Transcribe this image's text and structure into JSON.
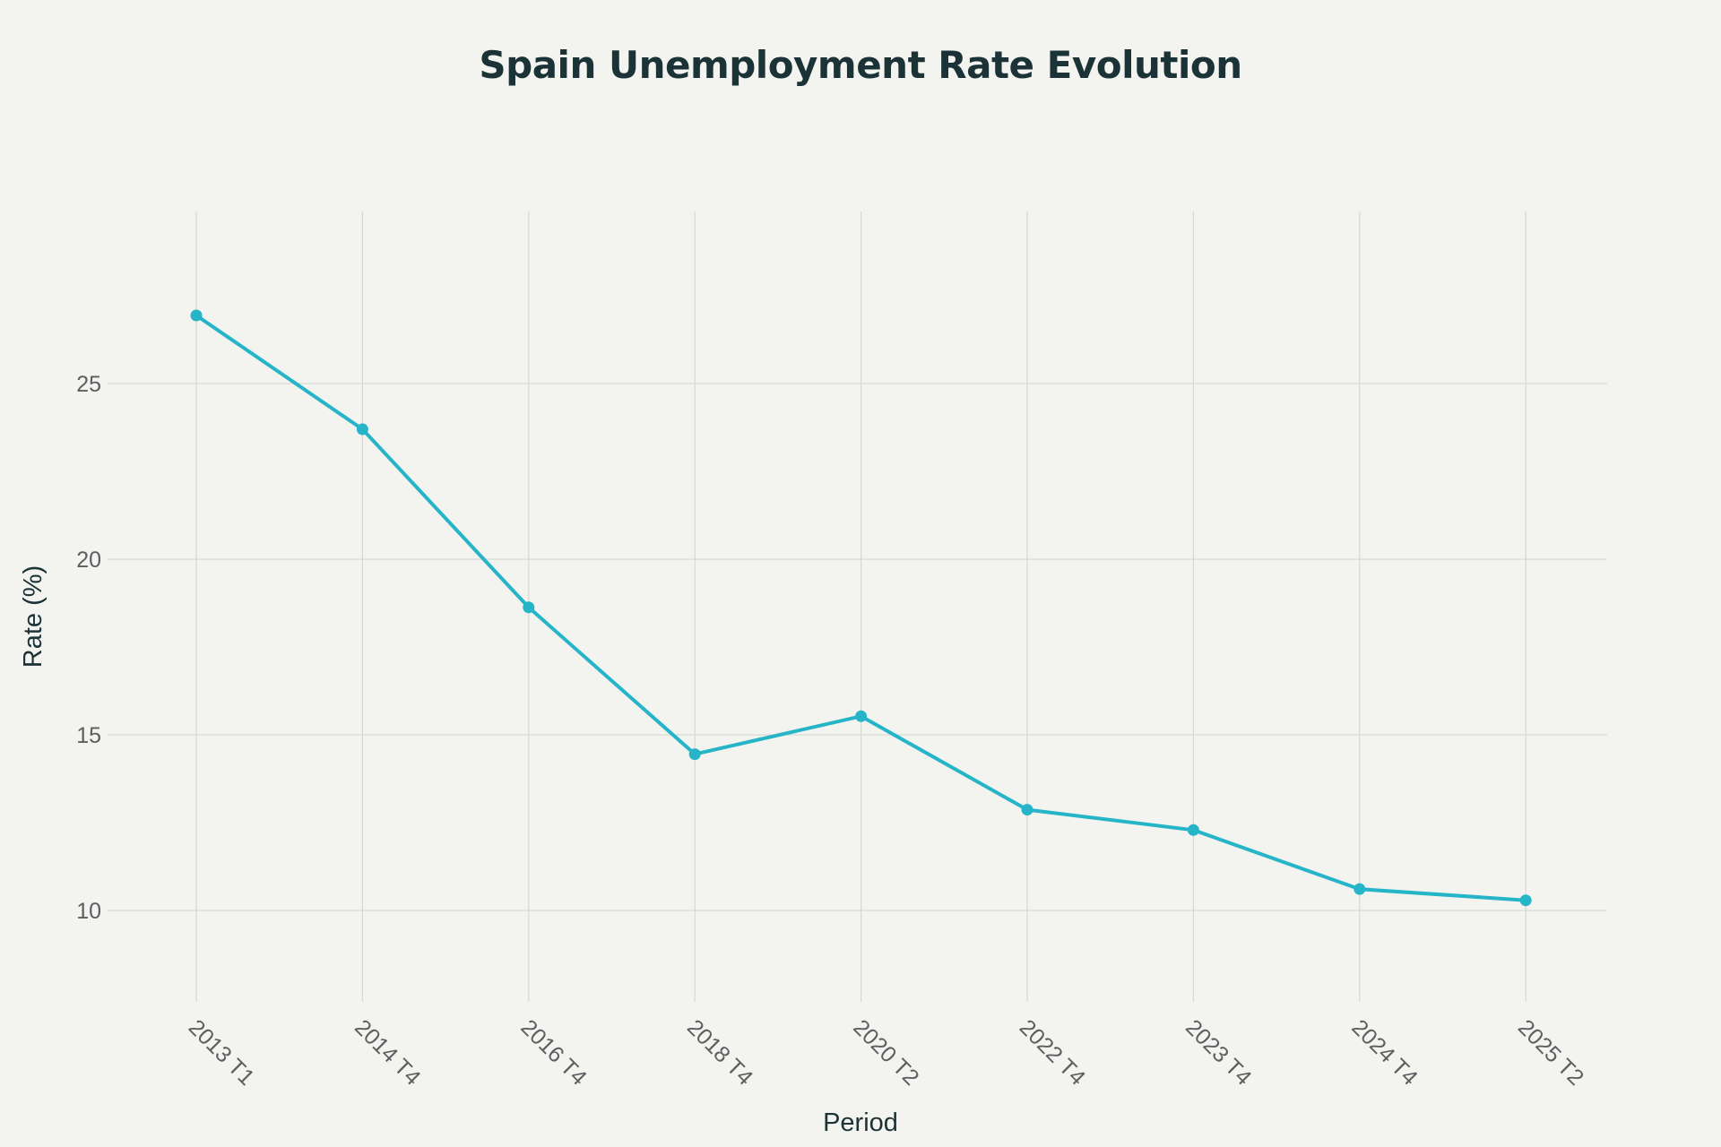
{
  "chart_data": {
    "type": "line",
    "title": "Spain Unemployment Rate Evolution",
    "xlabel": "Period",
    "ylabel": "Rate (%)",
    "categories": [
      "2013 T1",
      "2014 T4",
      "2016 T4",
      "2018 T4",
      "2020 T2",
      "2022 T4",
      "2023 T4",
      "2024 T4",
      "2025 T2"
    ],
    "series": [
      {
        "values": [
          26.94,
          23.7,
          18.63,
          14.45,
          15.53,
          12.87,
          12.29,
          10.61,
          10.29
        ],
        "color": "#26b5c8"
      }
    ],
    "yticks": [
      10,
      15,
      20,
      25
    ],
    "ylim": [
      7.4,
      29.9
    ],
    "grid": true,
    "legend": "none"
  }
}
